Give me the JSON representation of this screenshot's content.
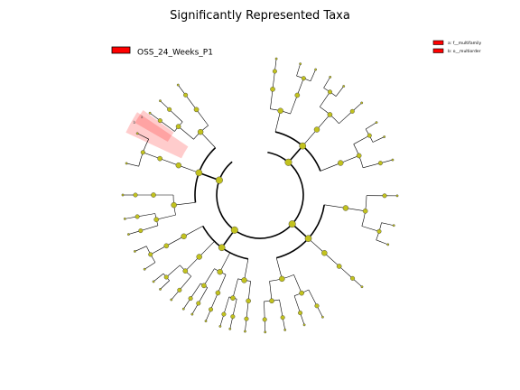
{
  "chart_data": {
    "type": "cladogram",
    "title": "Significantly Represented Taxa",
    "legend": {
      "placement": "top-left",
      "entries": [
        {
          "name": "OSS_24_Weeks_P1",
          "color": "#ff0000"
        }
      ]
    },
    "clade_legend": {
      "placement": "top-right",
      "entries": [
        {
          "key": "a",
          "text": "a: f__multifamily",
          "color": "#ff0000"
        },
        {
          "key": "b",
          "text": "b: o__multiorder",
          "color": "#ff0000"
        }
      ]
    },
    "highlighted_clades": [
      {
        "key": "a",
        "label": "a",
        "group": "OSS_24_Weeks_P1",
        "start_angle_deg": 210,
        "end_angle_deg": 216,
        "color": "#ff0000"
      },
      {
        "key": "b",
        "label": "b",
        "group": "OSS_24_Weeks_P1",
        "start_angle_deg": 205,
        "end_angle_deg": 214,
        "color": "#ff0000"
      }
    ],
    "node_color": "#c2c21e",
    "highlight_node_color": "#ff0000",
    "levels": 6,
    "phyla": [
      {
        "start_angle_deg": 270,
        "end_angle_deg": 352
      },
      {
        "start_angle_deg": 352,
        "end_angle_deg": 452
      },
      {
        "start_angle_deg": 452,
        "end_angle_deg": 520
      },
      {
        "start_angle_deg": 520,
        "end_angle_deg": 600
      }
    ]
  }
}
